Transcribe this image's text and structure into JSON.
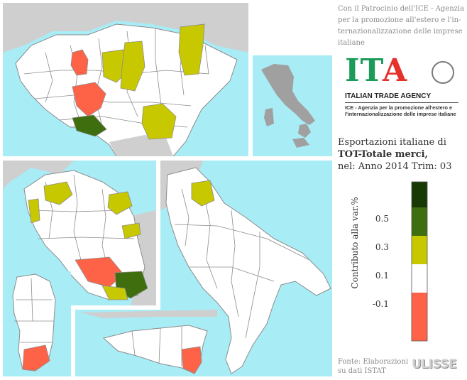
{
  "patronage": {
    "lines": [
      "Con il Patrocinio dell'ICE - Agenzia",
      "per la promozione all'estero e l'in-",
      "ternazionalizzazione delle imprese",
      "italiane"
    ]
  },
  "logo": {
    "letters": [
      "I",
      "T",
      "A"
    ],
    "name": "ITALIAN TRADE AGENCY",
    "desc_lines": [
      "ICE - Agenzia per la promozione all'estero e",
      "l'internazionalizzazione delle imprese italiane"
    ]
  },
  "title": {
    "line1": "Esportazioni italiane di",
    "line2": "TOT-Totale merci,",
    "line3": "nel: Anno 2014 Trim: 03"
  },
  "legend": {
    "axis_label": "Contributo alla var.%",
    "ticks": [
      "0.5",
      "0.3",
      "0.1",
      "-0.1"
    ],
    "classes": [
      {
        "color": "#173a05",
        "range": "> 0.5"
      },
      {
        "color": "#3f6e0f",
        "range": "0.3 – 0.5"
      },
      {
        "color": "#c8c800",
        "range": "0.1 – 0.3"
      },
      {
        "color": "#ffffff",
        "range": "-0.1 – 0.1"
      },
      {
        "color": "#ff6347",
        "range": "< -0.1"
      }
    ]
  },
  "source": {
    "lines": [
      "Fonte: Elaborazioni",
      "su dati ISTAT"
    ]
  },
  "brand": "ULISSE",
  "colors": {
    "sea": "#a8ecf6",
    "foreign_land": "#cfcfcf",
    "neutral": "#ffffff",
    "positive_low": "#c8c800",
    "positive_mid": "#3f6e0f",
    "positive_high": "#173a05",
    "negative": "#ff6347"
  },
  "maps": {
    "panels": [
      "north-italy",
      "italy-overview",
      "central-italy",
      "south-italy",
      "sardinia",
      "sicily"
    ],
    "highlighted_provinces": {
      "north-italy": [
        "negative",
        "negative",
        "positive_low",
        "positive_low",
        "positive_low",
        "positive_low",
        "positive_mid"
      ],
      "central-italy": [
        "positive_low",
        "positive_low",
        "positive_low",
        "positive_low",
        "negative",
        "positive_mid",
        "positive_low"
      ],
      "south-italy": [
        "positive_low"
      ],
      "sardinia": [
        "negative"
      ],
      "sicily": [
        "negative"
      ]
    }
  }
}
